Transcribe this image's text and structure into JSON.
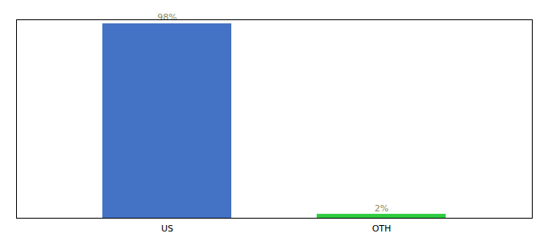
{
  "chart_data": {
    "type": "bar",
    "categories": [
      "US",
      "OTH"
    ],
    "values": [
      98,
      2
    ],
    "value_labels": [
      "98%",
      "2%"
    ],
    "colors": [
      "#4472c4",
      "#2ecc40"
    ],
    "ylim": [
      0,
      100
    ],
    "data_labels": true,
    "tick_labels": "x",
    "grid": false
  }
}
